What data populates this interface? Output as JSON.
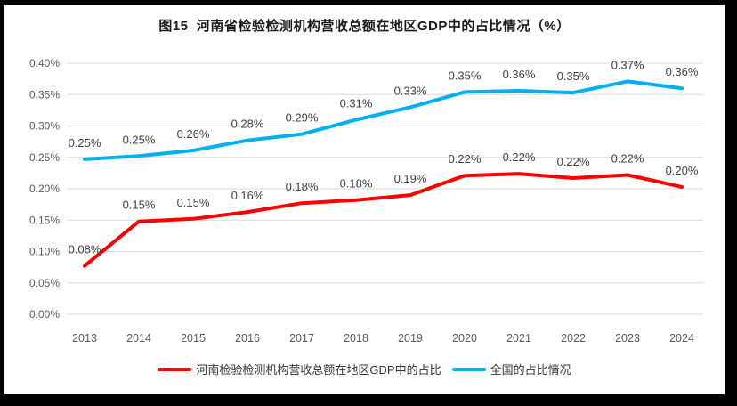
{
  "title": "图15  河南省检验检测机构营收总额在地区GDP中的占比情况（%）",
  "chart_data": {
    "type": "line",
    "title": "图15  河南省检验检测机构营收总额在地区GDP中的占比情况（%）",
    "categories": [
      "2013",
      "2014",
      "2015",
      "2016",
      "2017",
      "2018",
      "2019",
      "2020",
      "2021",
      "2022",
      "2023",
      "2024"
    ],
    "series": [
      {
        "name": "河南检验检测机构营收总额在地区GDP中的占比",
        "color": "#FF0000",
        "values": [
          0.08,
          0.15,
          0.15,
          0.16,
          0.18,
          0.18,
          0.19,
          0.22,
          0.22,
          0.22,
          0.22,
          0.2
        ],
        "labels": [
          "0.08%",
          "0.15%",
          "0.15%",
          "0.16%",
          "0.18%",
          "0.18%",
          "0.19%",
          "0.22%",
          "0.22%",
          "0.22%",
          "0.22%",
          "0.20%"
        ],
        "values_plot": [
          0.077,
          0.148,
          0.152,
          0.163,
          0.177,
          0.182,
          0.19,
          0.221,
          0.224,
          0.217,
          0.222,
          0.203
        ]
      },
      {
        "name": "全国的占比情况",
        "color": "#00B0F0",
        "values": [
          0.25,
          0.25,
          0.26,
          0.28,
          0.29,
          0.31,
          0.33,
          0.35,
          0.36,
          0.35,
          0.37,
          0.36
        ],
        "labels": [
          "0.25%",
          "0.25%",
          "0.26%",
          "0.28%",
          "0.29%",
          "0.31%",
          "0.33%",
          "0.35%",
          "0.36%",
          "0.35%",
          "0.37%",
          "0.36%"
        ],
        "values_plot": [
          0.247,
          0.252,
          0.261,
          0.277,
          0.287,
          0.31,
          0.33,
          0.354,
          0.356,
          0.353,
          0.371,
          0.36
        ]
      }
    ],
    "xlabel": "",
    "ylabel": "",
    "y_ticks": [
      "0.00%",
      "0.05%",
      "0.10%",
      "0.15%",
      "0.20%",
      "0.25%",
      "0.30%",
      "0.35%",
      "0.40%"
    ],
    "y_max": 0.4,
    "grid": true,
    "legend_position": "bottom",
    "colors": {
      "henan_line": "#FF0000",
      "national_line": "#00B0F0",
      "gridline": "#D9D9D9",
      "tick_text": "#595959",
      "data_label_text": "#404040",
      "title_text": "#1a1a1a"
    }
  },
  "legend": [
    {
      "label": "河南检验检测机构营收总额在地区GDP中的占比",
      "color": "#FF0000"
    },
    {
      "label": "全国的占比情况",
      "color": "#00B0F0"
    }
  ]
}
